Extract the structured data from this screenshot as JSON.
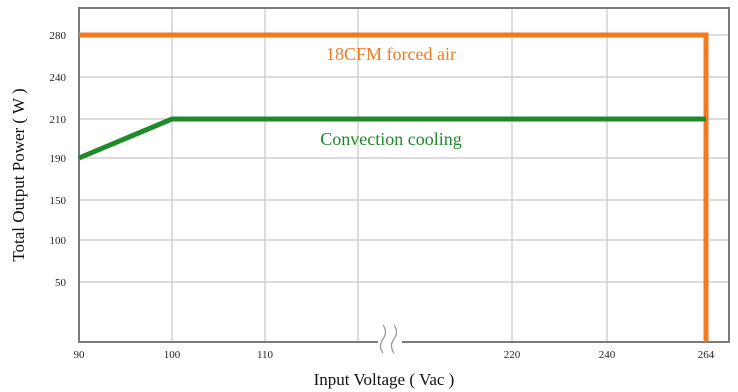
{
  "chart_data": {
    "type": "line",
    "xlabel": "Input Voltage ( Vac )",
    "ylabel": "Total Output Power ( W )",
    "x_ticks": [
      "90",
      "100",
      "110",
      "220",
      "240",
      "264"
    ],
    "x_axis_break": true,
    "y_ticks": [
      "280",
      "240",
      "210",
      "190",
      "150",
      "100",
      "50"
    ],
    "grid": true,
    "series": [
      {
        "name": "18CFM forced air",
        "color": "#f47a20",
        "points": [
          {
            "x": 90,
            "y": 280
          },
          {
            "x": 264,
            "y": 280
          },
          {
            "x": 264,
            "y": 0
          }
        ]
      },
      {
        "name": "Convection cooling",
        "color": "#1e8a2a",
        "points": [
          {
            "x": 90,
            "y": 190
          },
          {
            "x": 100,
            "y": 210
          },
          {
            "x": 264,
            "y": 210
          }
        ]
      }
    ]
  }
}
